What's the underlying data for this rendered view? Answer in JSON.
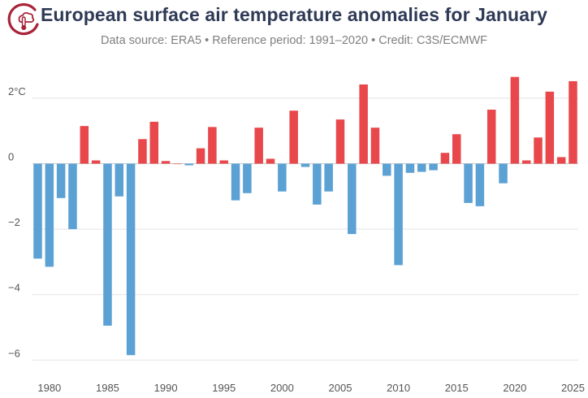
{
  "title": "European surface air temperature anomalies for January",
  "subtitle": "Data source: ERA5 • Reference period: 1991–2020 • Credit: C3S/ECMWF",
  "logo": {
    "icon": "thermometer-cloud-logo"
  },
  "colors": {
    "positive": "#e8484b",
    "negative": "#5ba1d4",
    "grid": "#e3e3e3",
    "zero_line": "#cccccc"
  },
  "chart_data": {
    "type": "bar",
    "title": "European surface air temperature anomalies for January",
    "xlabel": "",
    "ylabel": "",
    "ylim": [
      -6.5,
      3.0
    ],
    "y_ticks": [
      2,
      0,
      -2,
      -4,
      -6
    ],
    "y_tick_labels": [
      "2°C",
      "0",
      "−2",
      "−4",
      "−6"
    ],
    "x_ticks": [
      1980,
      1985,
      1990,
      1995,
      2000,
      2005,
      2010,
      2015,
      2020,
      2025
    ],
    "x": [
      1979,
      1980,
      1981,
      1982,
      1983,
      1984,
      1985,
      1986,
      1987,
      1988,
      1989,
      1990,
      1991,
      1992,
      1993,
      1994,
      1995,
      1996,
      1997,
      1998,
      1999,
      2000,
      2001,
      2002,
      2003,
      2004,
      2005,
      2006,
      2007,
      2008,
      2009,
      2010,
      2011,
      2012,
      2013,
      2014,
      2015,
      2016,
      2017,
      2018,
      2019,
      2020,
      2021,
      2022,
      2023,
      2024,
      2025
    ],
    "values": [
      -2.9,
      -3.15,
      -1.05,
      -2.0,
      1.15,
      0.1,
      -4.95,
      -1.0,
      -5.85,
      0.75,
      1.28,
      0.08,
      0.0,
      -0.05,
      0.47,
      1.12,
      0.1,
      -1.12,
      -0.9,
      1.1,
      0.15,
      -0.85,
      1.62,
      -0.1,
      -1.25,
      -0.85,
      1.35,
      -2.15,
      2.42,
      1.1,
      -0.37,
      -3.1,
      -0.28,
      -0.25,
      -0.2,
      0.33,
      0.9,
      -1.2,
      -1.3,
      1.65,
      -0.6,
      2.65,
      0.1,
      0.8,
      2.2,
      0.2,
      2.52
    ],
    "grid": true,
    "legend": "none"
  }
}
